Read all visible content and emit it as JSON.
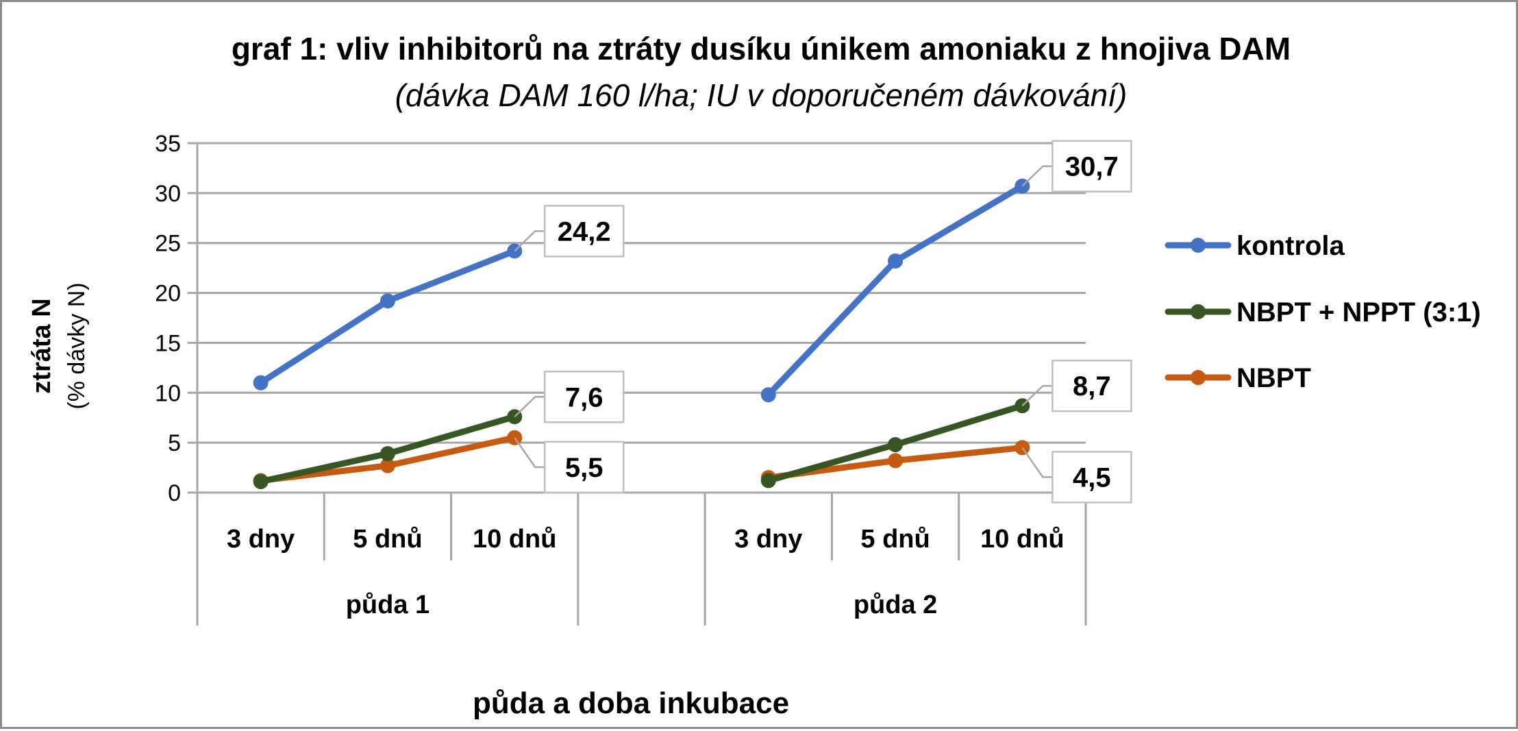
{
  "chart_data": {
    "type": "line",
    "title": "graf 1: vliv inhibitorů na ztráty dusíku únikem amoniaku z hnojiva DAM",
    "subtitle": "(dávka DAM 160 l/ha; IU v doporučeném dávkování)",
    "xlabel": "půda a doba inkubace",
    "ylabel": "ztráta N",
    "ylabel_sub": "(% dávky N)",
    "ylim": [
      0,
      35
    ],
    "yticks": [
      "0",
      "5",
      "10",
      "15",
      "20",
      "25",
      "30",
      "35"
    ],
    "groups": [
      {
        "name": "půda 1",
        "categories": [
          "3 dny",
          "5 dnů",
          "10 dnů"
        ]
      },
      {
        "name": "půda 2",
        "categories": [
          "3 dny",
          "5 dnů",
          "10 dnů"
        ]
      }
    ],
    "grid": true,
    "legend_position": "right",
    "series": [
      {
        "name": "kontrola",
        "color": "#4472c4",
        "values": [
          [
            11.0,
            19.2,
            24.2
          ],
          [
            9.8,
            23.2,
            30.7
          ]
        ],
        "labels": [
          "24,2",
          "30,7"
        ]
      },
      {
        "name": "NBPT + NPPT (3:1)",
        "color": "#375623",
        "values": [
          [
            1.1,
            3.9,
            7.6
          ],
          [
            1.2,
            4.8,
            8.7
          ]
        ],
        "labels": [
          "7,6",
          "8,7"
        ]
      },
      {
        "name": "NBPT",
        "color": "#c55a11",
        "values": [
          [
            1.2,
            2.7,
            5.5
          ],
          [
            1.5,
            3.2,
            4.5
          ]
        ],
        "labels": [
          "5,5",
          "4,5"
        ]
      }
    ]
  }
}
